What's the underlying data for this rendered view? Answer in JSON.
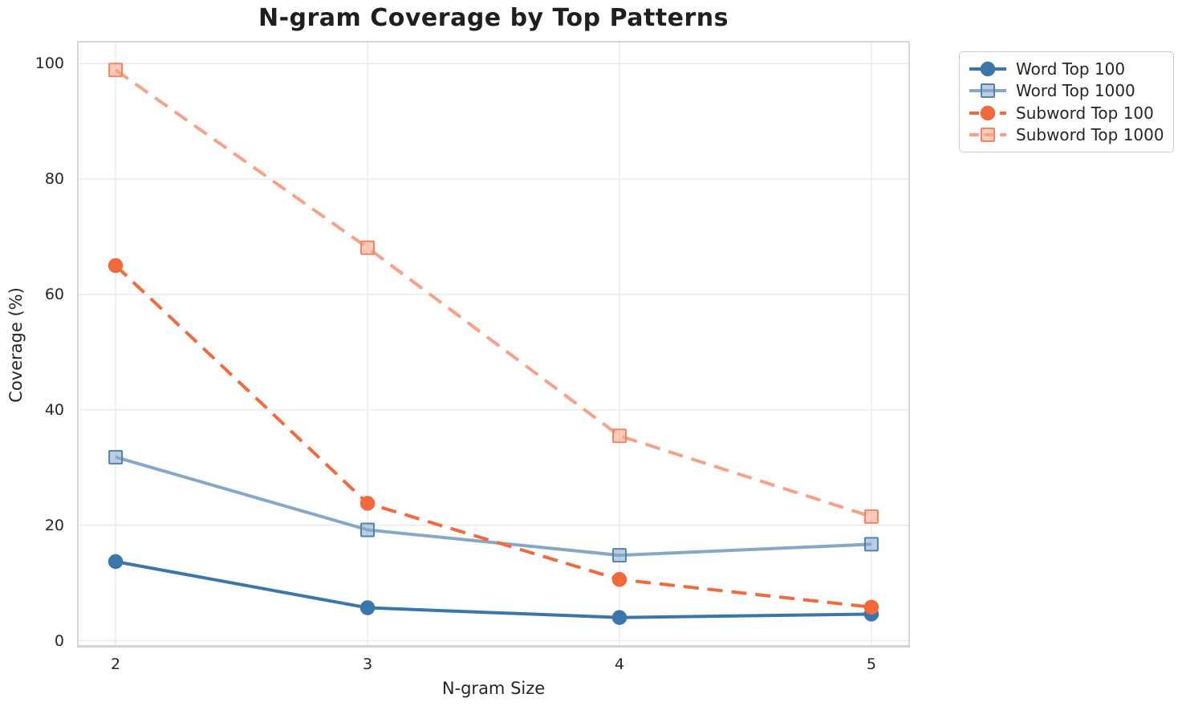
{
  "chart_data": {
    "type": "line",
    "title": "N-gram Coverage by Top Patterns",
    "xlabel": "N-gram Size",
    "ylabel": "Coverage (%)",
    "x": [
      2,
      3,
      4,
      5
    ],
    "xtick_labels": [
      "2",
      "3",
      "4",
      "5"
    ],
    "yticks": [
      0,
      20,
      40,
      60,
      80,
      100
    ],
    "xlim": [
      1.85,
      5.15
    ],
    "ylim": [
      -0.9,
      103.8
    ],
    "grid": true,
    "legend_position": "outside-upper-right",
    "series": [
      {
        "name": "Word Top 100",
        "slug": "word-top-100",
        "values": [
          13.7,
          5.7,
          4.0,
          4.6
        ],
        "color": "#3B76AB",
        "marker_edge": "#3B76AB",
        "line": "solid",
        "marker": "circle"
      },
      {
        "name": "Word Top 1000",
        "slug": "word-top-1000",
        "values": [
          31.8,
          19.2,
          14.8,
          16.7
        ],
        "color": "#85A8C9",
        "marker_edge": "#4F83B3",
        "line": "solid",
        "marker": "square"
      },
      {
        "name": "Subword Top 100",
        "slug": "subword-top-100",
        "values": [
          65.0,
          23.8,
          10.6,
          5.8
        ],
        "color": "#F4693C",
        "marker_edge": "#F4693C",
        "line": "dashed",
        "marker": "circle"
      },
      {
        "name": "Subword Top 1000",
        "slug": "subword-top-1000",
        "values": [
          98.9,
          68.1,
          35.5,
          21.5
        ],
        "color": "#F9A185",
        "marker_edge": "#F5835F",
        "line": "dashed",
        "marker": "square"
      }
    ],
    "colors": {
      "background": "#FFFFFF",
      "grid": "#E9E9E9",
      "spine": "#CBCBCB",
      "bottom_spine": "#D2D2D2",
      "text": "#262626",
      "title": "#1F1F1F"
    }
  }
}
